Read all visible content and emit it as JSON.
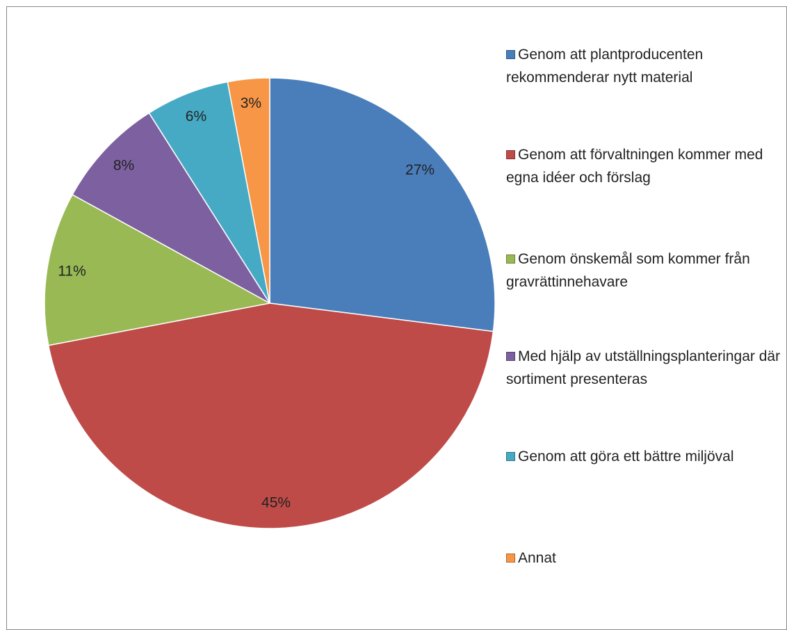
{
  "chart_data": {
    "type": "pie",
    "categories": [
      "Genom att plantproducenten rekommenderar nytt material",
      "Genom att förvaltningen kommer med egna idéer och förslag",
      "Genom önskemål som kommer från gravrättinnehavare",
      "Med hjälp av utställningsplanteringar där sortiment presenteras",
      "Genom att göra ett bättre miljöval",
      "Annat"
    ],
    "values": [
      27,
      45,
      11,
      8,
      6,
      3
    ],
    "value_labels": [
      "27%",
      "45%",
      "11%",
      "8%",
      "6%",
      "3%"
    ],
    "colors": [
      "#4a7ebb",
      "#be4b48",
      "#98b954",
      "#7d60a0",
      "#46aac5",
      "#f79646"
    ],
    "legend": "right"
  }
}
